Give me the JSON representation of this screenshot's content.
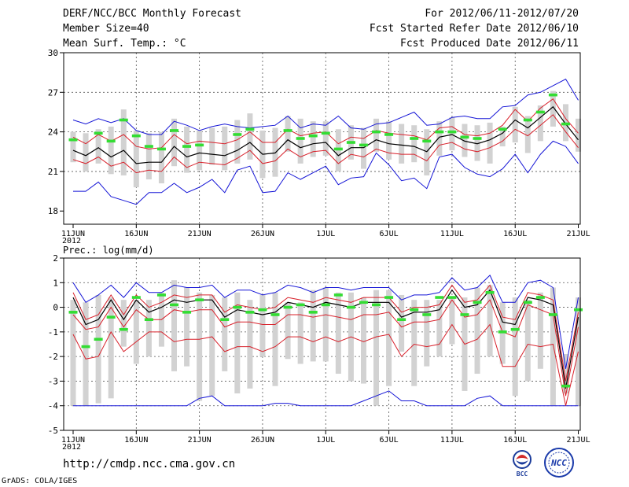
{
  "header": {
    "title": "DERF/NCC/BCC Monthly Forecast",
    "member_size": "Member Size=40",
    "variable": "Mean Surf. Temp.: °C",
    "period": "For 2012/06/11-2012/07/20",
    "fcst_started": "Fcst Started Refer Date 2012/06/10",
    "fcst_produced": "Fcst Produced Date 2012/06/11"
  },
  "footer": {
    "url": "http://cmdp.ncc.cma.gov.cn",
    "credit": "GrADS: COLA/IGES",
    "logo_bcc": "BCC",
    "logo_ncc": "NCC"
  },
  "colors": {
    "envelope": "#1515d6",
    "spread": "#d8202a",
    "mean": "#000000",
    "box": "#d2d2d2",
    "obs": "#33dd33",
    "grid": "#555555"
  },
  "chart_data": [
    {
      "type": "line",
      "title": "Mean Surf. Temp.: °C",
      "x_tick_labels": [
        "11JUN",
        "16JUN",
        "21JUN",
        "26JUN",
        "1JUL",
        "6JUL",
        "11JUL",
        "16JUL",
        "21JUL"
      ],
      "x_year_label": "2012",
      "y_tick_labels": [
        "18",
        "21",
        "24",
        "27",
        "30"
      ],
      "ylim": [
        17,
        30
      ],
      "y_ticks": [
        18,
        21,
        24,
        27,
        30
      ],
      "day_start": 0,
      "day_end": 40,
      "series": [
        {
          "name": "max",
          "values": [
            24.9,
            24.6,
            25.0,
            24.7,
            25.0,
            24.1,
            23.8,
            23.8,
            24.8,
            24.5,
            24.1,
            24.4,
            24.6,
            24.4,
            24.3,
            24.4,
            24.5,
            25.2,
            24.3,
            24.6,
            24.5,
            25.2,
            24.3,
            24.2,
            24.6,
            24.7,
            25.1,
            25.5,
            24.5,
            24.6,
            25.1,
            25.2,
            25.0,
            25.0,
            25.9,
            26.0,
            26.8,
            27.0,
            27.5,
            28.0,
            26.4
          ]
        },
        {
          "name": "upper",
          "values": [
            23.6,
            23.1,
            23.8,
            23.3,
            23.8,
            22.9,
            22.7,
            22.8,
            23.8,
            23.1,
            23.3,
            23.2,
            23.1,
            23.4,
            24.0,
            23.2,
            23.2,
            24.2,
            23.7,
            23.9,
            24.0,
            23.1,
            23.6,
            23.5,
            24.1,
            23.9,
            23.8,
            23.7,
            23.4,
            24.3,
            24.4,
            23.8,
            23.7,
            23.9,
            24.5,
            25.7,
            24.8,
            25.8,
            26.5,
            25.0,
            23.9
          ]
        },
        {
          "name": "mean",
          "values": [
            22.6,
            22.2,
            22.8,
            22.1,
            22.6,
            21.6,
            21.7,
            21.7,
            22.9,
            22.1,
            22.4,
            22.3,
            22.2,
            22.6,
            23.2,
            22.3,
            22.4,
            23.4,
            22.8,
            23.1,
            23.2,
            22.2,
            22.8,
            22.8,
            23.4,
            23.1,
            23.0,
            22.9,
            22.5,
            23.6,
            23.8,
            23.3,
            23.1,
            23.4,
            23.9,
            24.9,
            24.3,
            25.1,
            25.9,
            24.6,
            23.4
          ]
        },
        {
          "name": "lower",
          "values": [
            21.9,
            21.6,
            22.1,
            21.4,
            21.7,
            20.9,
            21.1,
            21.0,
            22.1,
            21.3,
            21.7,
            21.6,
            21.5,
            22.0,
            22.6,
            21.6,
            21.8,
            22.7,
            22.1,
            22.5,
            22.6,
            21.6,
            22.3,
            22.1,
            22.7,
            22.4,
            22.3,
            22.3,
            21.8,
            23.0,
            23.2,
            22.7,
            22.5,
            22.8,
            23.3,
            24.2,
            23.7,
            24.5,
            25.3,
            24.0,
            22.8
          ]
        },
        {
          "name": "min",
          "values": [
            19.5,
            19.5,
            20.2,
            19.1,
            18.8,
            18.5,
            19.4,
            19.4,
            20.1,
            19.4,
            19.8,
            20.4,
            19.4,
            21.1,
            21.4,
            19.4,
            19.5,
            20.9,
            20.4,
            20.9,
            21.4,
            20.0,
            20.5,
            20.6,
            22.4,
            21.5,
            20.3,
            20.5,
            19.7,
            22.1,
            22.3,
            21.3,
            20.8,
            20.6,
            21.2,
            22.3,
            20.9,
            22.3,
            23.3,
            22.9,
            21.6
          ]
        },
        {
          "name": "box_high",
          "values": [
            24.0,
            23.9,
            24.2,
            24.4,
            25.7,
            24.1,
            23.9,
            24.0,
            25.0,
            24.4,
            24.1,
            24.3,
            24.4,
            24.9,
            25.4,
            24.1,
            24.3,
            25.2,
            25.0,
            24.8,
            24.8,
            24.2,
            24.5,
            24.3,
            25.0,
            24.8,
            24.6,
            24.5,
            24.2,
            24.8,
            25.1,
            24.6,
            24.5,
            24.7,
            24.4,
            25.9,
            25.2,
            26.0,
            27.1,
            26.1,
            25.0
          ]
        },
        {
          "name": "box_low",
          "values": [
            21.7,
            21.0,
            21.6,
            20.8,
            20.7,
            19.8,
            20.4,
            20.1,
            21.4,
            20.9,
            21.1,
            21.5,
            21.1,
            21.6,
            21.9,
            20.5,
            20.6,
            22.5,
            21.6,
            22.1,
            22.2,
            21.0,
            21.9,
            21.2,
            22.5,
            21.9,
            21.6,
            21.7,
            20.7,
            22.2,
            22.6,
            22.1,
            21.8,
            21.6,
            22.9,
            23.2,
            22.4,
            23.3,
            24.4,
            23.3,
            22.5
          ]
        },
        {
          "name": "obs",
          "values": [
            23.4,
            null,
            23.9,
            23.3,
            24.9,
            23.7,
            22.9,
            22.7,
            24.1,
            22.9,
            23.0,
            null,
            null,
            23.8,
            24.2,
            null,
            null,
            24.1,
            23.5,
            23.7,
            23.9,
            22.7,
            23.2,
            23.0,
            24.0,
            23.8,
            null,
            23.5,
            23.3,
            24.0,
            24.0,
            23.6,
            23.5,
            null,
            24.2,
            null,
            24.9,
            25.5,
            26.8,
            24.6,
            null
          ]
        }
      ]
    },
    {
      "type": "line",
      "title": "Prec.: log(mm/d)",
      "x_tick_labels": [
        "11JUN",
        "16JUN",
        "21JUN",
        "26JUN",
        "1JUL",
        "6JUL",
        "11JUL",
        "16JUL",
        "21JUL"
      ],
      "x_year_label": "2012",
      "y_tick_labels": [
        "-5",
        "-4",
        "-3",
        "-2",
        "-1",
        "0",
        "1",
        "2"
      ],
      "ylim": [
        -5,
        2
      ],
      "y_ticks": [
        -5,
        -4,
        -3,
        -2,
        -1,
        0,
        1,
        2
      ],
      "day_start": 0,
      "day_end": 40,
      "series": [
        {
          "name": "max",
          "values": [
            1.0,
            0.2,
            0.5,
            0.9,
            0.4,
            1.0,
            0.6,
            0.6,
            0.9,
            0.8,
            0.8,
            0.9,
            0.4,
            0.7,
            0.7,
            0.5,
            0.6,
            0.9,
            0.8,
            0.6,
            0.8,
            0.8,
            0.7,
            0.8,
            0.8,
            0.8,
            0.3,
            0.5,
            0.5,
            0.6,
            1.2,
            0.7,
            0.8,
            1.3,
            0.2,
            0.2,
            1.0,
            1.1,
            0.8,
            -2.5,
            0.4
          ]
        },
        {
          "name": "upper",
          "values": [
            0.6,
            -0.5,
            -0.3,
            0.5,
            -0.3,
            0.5,
            0.0,
            0.2,
            0.5,
            0.4,
            0.5,
            0.5,
            -0.2,
            0.1,
            0.0,
            -0.1,
            0.0,
            0.4,
            0.3,
            0.2,
            0.4,
            0.3,
            0.2,
            0.4,
            0.4,
            0.4,
            -0.2,
            0.0,
            0.0,
            0.1,
            0.9,
            0.2,
            0.3,
            0.9,
            -0.4,
            -0.5,
            0.6,
            0.5,
            0.3,
            -3.0,
            -0.2
          ]
        },
        {
          "name": "mean",
          "values": [
            0.4,
            -0.7,
            -0.5,
            0.3,
            -0.5,
            0.3,
            -0.2,
            0.0,
            0.3,
            0.2,
            0.3,
            0.3,
            -0.4,
            -0.1,
            -0.2,
            -0.3,
            -0.2,
            0.2,
            0.1,
            0.0,
            0.2,
            0.1,
            0.0,
            0.2,
            0.2,
            0.2,
            -0.4,
            -0.2,
            -0.2,
            -0.1,
            0.7,
            0.0,
            0.1,
            0.7,
            -0.6,
            -0.7,
            0.4,
            0.3,
            0.1,
            -3.3,
            -0.4
          ]
        },
        {
          "name": "lower",
          "values": [
            -0.3,
            -0.9,
            -0.8,
            0.0,
            -0.8,
            -0.1,
            -0.5,
            -0.5,
            -0.1,
            -0.2,
            -0.1,
            -0.1,
            -0.8,
            -0.6,
            -0.6,
            -0.7,
            -0.7,
            -0.3,
            -0.3,
            -0.4,
            -0.3,
            -0.4,
            -0.5,
            -0.3,
            -0.3,
            -0.2,
            -0.8,
            -0.6,
            -0.6,
            -0.5,
            0.3,
            -0.4,
            -0.3,
            0.3,
            -1.0,
            -1.2,
            0.1,
            -0.1,
            -0.3,
            -3.6,
            -0.8
          ]
        },
        {
          "name": "min",
          "values": [
            -1.1,
            -2.1,
            -2.0,
            -1.0,
            -1.8,
            -1.4,
            -1.0,
            -1.0,
            -1.4,
            -1.3,
            -1.3,
            -1.2,
            -1.8,
            -1.6,
            -1.6,
            -1.8,
            -1.6,
            -1.2,
            -1.2,
            -1.4,
            -1.2,
            -1.4,
            -1.2,
            -1.4,
            -1.2,
            -1.1,
            -2.0,
            -1.5,
            -1.6,
            -1.5,
            -0.7,
            -1.5,
            -1.3,
            -0.7,
            -2.4,
            -2.4,
            -1.5,
            -1.6,
            -1.5,
            -4.0,
            -1.8
          ]
        },
        {
          "name": "envelope_low",
          "values": [
            -4.0,
            -4.0,
            -4.0,
            -4.0,
            -4.0,
            -4.0,
            -4.0,
            -4.0,
            -4.0,
            -4.0,
            -3.7,
            -3.6,
            -4.0,
            -4.0,
            -4.0,
            -4.0,
            -3.9,
            -3.9,
            -4.0,
            -4.0,
            -4.0,
            -4.0,
            -4.0,
            -3.8,
            -3.6,
            -3.4,
            -3.8,
            -3.8,
            -4.0,
            -4.0,
            -4.0,
            -4.0,
            -3.7,
            -3.6,
            -4.0,
            -4.0,
            -4.0,
            -4.0,
            -4.0,
            -4.0,
            -4.0
          ]
        },
        {
          "name": "box_high",
          "values": [
            0.3,
            0.2,
            0.5,
            0.4,
            0.3,
            0.3,
            0.3,
            0.6,
            1.1,
            0.8,
            0.6,
            0.5,
            0.4,
            0.6,
            0.3,
            0.5,
            0.6,
            0.2,
            0.2,
            0.7,
            0.8,
            0.6,
            0.6,
            0.4,
            0.7,
            0.7,
            0.5,
            0.3,
            0.3,
            0.3,
            0.4,
            0.4,
            0.8,
            0.9,
            0.2,
            0.4,
            0.3,
            0.6,
            0.8,
            -1.9,
            0.4
          ]
        },
        {
          "name": "box_low",
          "values": [
            -4.0,
            -4.0,
            -3.9,
            -3.7,
            -1.6,
            -2.3,
            -2.0,
            -1.6,
            -2.6,
            -2.4,
            -3.8,
            -3.6,
            -2.6,
            -3.5,
            -3.3,
            -2.0,
            -3.2,
            -2.1,
            -2.3,
            -2.2,
            -2.2,
            -2.7,
            -3.0,
            -3.1,
            -4.0,
            -3.2,
            -1.8,
            -3.2,
            -2.4,
            -2.0,
            -1.5,
            -3.4,
            -2.7,
            -2.0,
            -2.3,
            -3.6,
            -3.0,
            -2.5,
            -4.0,
            -3.5,
            -4.0
          ]
        },
        {
          "name": "obs",
          "values": [
            -0.2,
            -1.6,
            -1.3,
            -0.4,
            -0.9,
            0.4,
            -0.5,
            0.5,
            0.1,
            -0.2,
            0.3,
            null,
            -0.5,
            0.0,
            -0.2,
            -0.1,
            -0.3,
            0.0,
            0.1,
            -0.2,
            0.1,
            0.5,
            0.0,
            0.2,
            0.1,
            0.4,
            -0.5,
            -0.1,
            -0.3,
            0.4,
            0.4,
            -0.3,
            0.2,
            0.6,
            -1.0,
            -0.9,
            0.2,
            0.4,
            -0.3,
            -3.2,
            -0.1
          ]
        }
      ]
    }
  ]
}
